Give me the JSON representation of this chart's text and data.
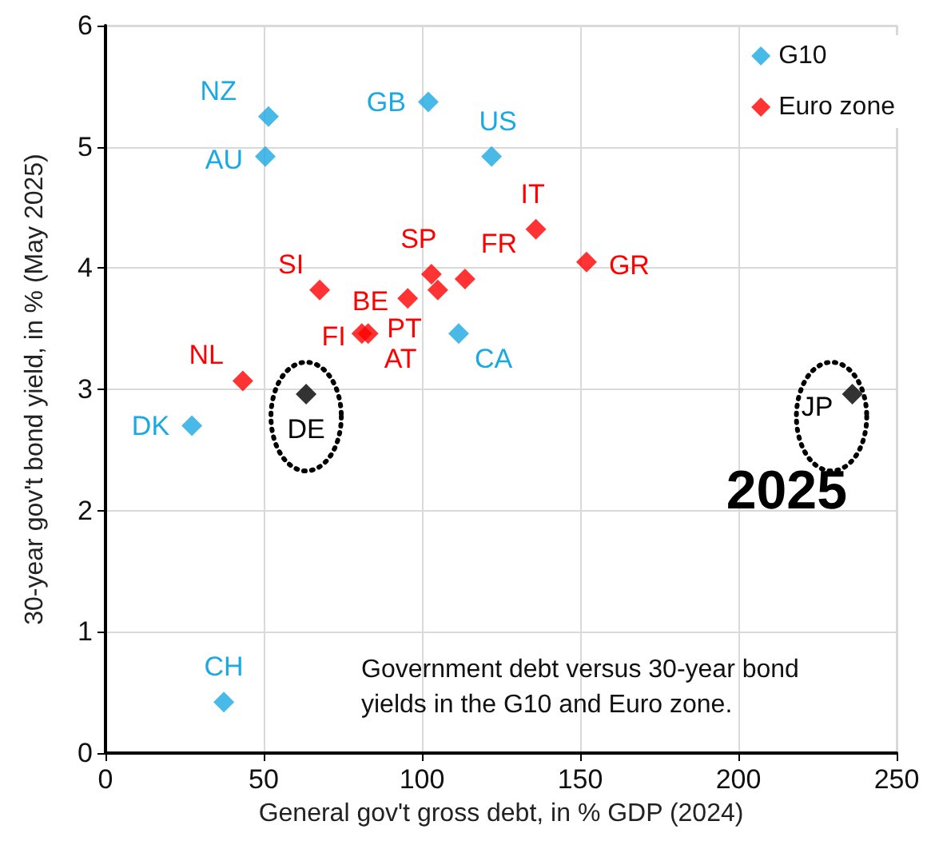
{
  "chart_data": {
    "type": "scatter",
    "xlabel": "General gov't gross debt, in % GDP (2024)",
    "ylabel": "30-year gov't bond yield, in % (May 2025)",
    "xlim": [
      0,
      250
    ],
    "xticks": [
      0,
      50,
      100,
      150,
      200,
      250
    ],
    "ylim": [
      0,
      6
    ],
    "yticks": [
      0,
      1,
      2,
      3,
      4,
      5,
      6
    ],
    "grid": true,
    "legend": "top right",
    "marker": "diamond",
    "series": [
      {
        "name": "G10",
        "color": "#1ba9e1",
        "x": [
          51.5,
          50.5,
          102,
          122,
          111.6,
          27.3,
          37.4
        ],
        "values": [
          5.25,
          4.92,
          5.37,
          4.92,
          3.46,
          2.7,
          0.42
        ]
      },
      {
        "name": "Euro zone",
        "color": "#ff0000",
        "x": [
          67.7,
          95.5,
          81,
          83,
          103,
          105,
          113.6,
          136,
          152,
          43.4
        ],
        "values": [
          3.82,
          3.75,
          3.46,
          3.46,
          3.95,
          3.82,
          3.91,
          4.32,
          4.05,
          3.07
        ]
      },
      {
        "color": "#000000",
        "x": [
          63.4,
          236
        ],
        "values": [
          2.96,
          2.96
        ]
      }
    ],
    "annotations": [
      {
        "text": "NZ",
        "x": 51.5,
        "y": 5.25
      },
      {
        "text": "AU",
        "x": 50.5,
        "y": 4.92
      },
      {
        "text": "GB",
        "x": 102,
        "y": 5.37
      },
      {
        "text": "US",
        "x": 122,
        "y": 4.92
      },
      {
        "text": "CA",
        "x": 111.6,
        "y": 3.46
      },
      {
        "text": "DK",
        "x": 27.3,
        "y": 2.7
      },
      {
        "text": "CH",
        "x": 37.4,
        "y": 0.42
      },
      {
        "text": "SI",
        "x": 67.7,
        "y": 3.82
      },
      {
        "text": "BE",
        "x": 95.5,
        "y": 3.75
      },
      {
        "text": "FI",
        "x": 81,
        "y": 3.46
      },
      {
        "text": "AT",
        "x": 83,
        "y": 3.46
      },
      {
        "text": "SP",
        "x": 103,
        "y": 3.95
      },
      {
        "text": "PT",
        "x": 105,
        "y": 3.82
      },
      {
        "text": "FR",
        "x": 113.6,
        "y": 3.91
      },
      {
        "text": "IT",
        "x": 136,
        "y": 4.32
      },
      {
        "text": "GR",
        "x": 152,
        "y": 4.05
      },
      {
        "text": "NL",
        "x": 43.4,
        "y": 3.07
      },
      {
        "text": "DE",
        "x": 63.4,
        "y": 2.96
      },
      {
        "text": "JP",
        "x": 236,
        "y": 2.96
      },
      "2025",
      "Government debt versus 30-year bond yields in the G10 and Euro zone."
    ]
  }
}
